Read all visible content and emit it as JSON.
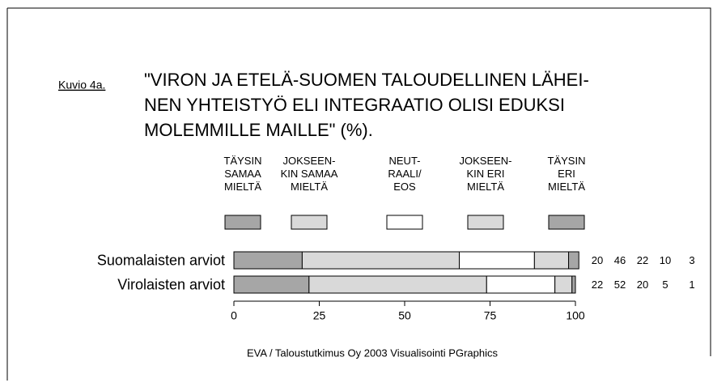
{
  "chart_data": {
    "type": "stacked-barh",
    "figure_label": "Kuvio 4a.",
    "title": "\"VIRON JA ETELÄ-SUOMEN TALOUDELLINEN LÄHEI-\nNEN YHTEISTYÖ ELI INTEGRAATIO OLISI EDUKSI\nMOLEMMILLE MAILLE\" (%).",
    "categories": [
      "Suomalaisten arviot",
      "Virolaisten arviot"
    ],
    "series": [
      {
        "name": "TÄYSIN\nSAMAA\nMIELTÄ",
        "color": "#a6a6a6",
        "values": [
          20,
          22
        ]
      },
      {
        "name": "JOKSEEN-\nKIN SAMAA\nMIELTÄ",
        "color": "#d9d9d9",
        "values": [
          46,
          52
        ]
      },
      {
        "name": "NEUT-\nRAALI/\nEOS",
        "color": "#ffffff",
        "values": [
          22,
          20
        ]
      },
      {
        "name": "JOKSEEN-\nKIN ERI\nMIELTÄ",
        "color": "#d9d9d9",
        "values": [
          10,
          5
        ]
      },
      {
        "name": "TÄYSIN\nERI\nMIELTÄ",
        "color": "#a6a6a6",
        "values": [
          3,
          1
        ]
      }
    ],
    "xlim": [
      0,
      100
    ],
    "xticks": [
      0,
      25,
      50,
      75,
      100
    ],
    "source": "EVA / Taloustutkimus Oy 2003  Visualisointi PGraphics"
  }
}
